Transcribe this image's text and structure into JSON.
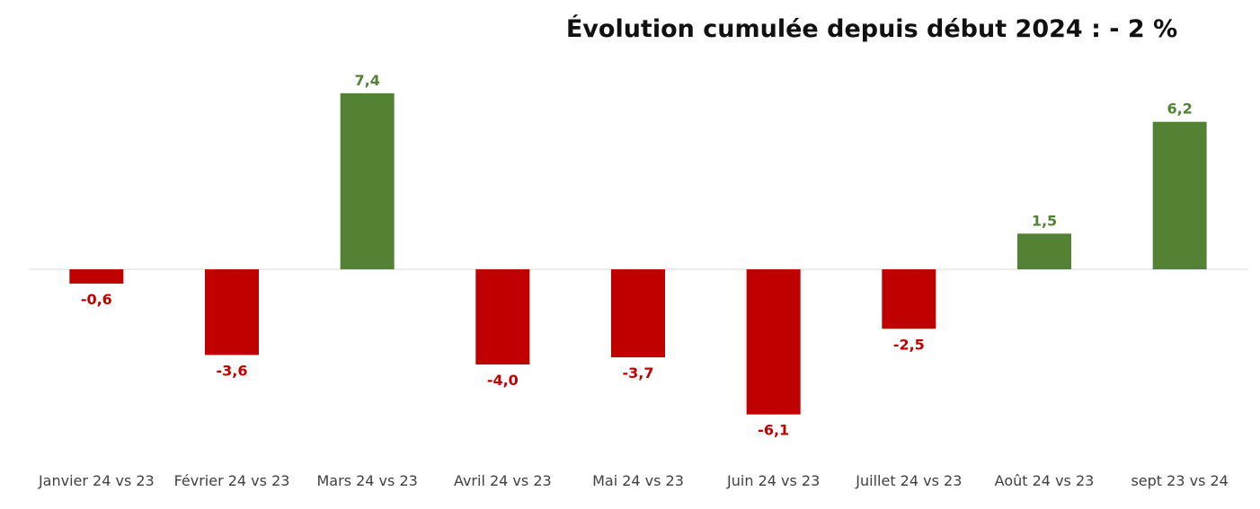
{
  "chart_data": {
    "type": "bar",
    "title": "Évolution cumulée depuis début 2024 : - 2 %",
    "xlabel": "",
    "ylabel": "",
    "categories": [
      "Janvier 24 vs 23",
      "Février 24 vs 23",
      "Mars 24 vs 23",
      "Avril 24 vs 23",
      "Mai 24 vs 23",
      "Juin 24 vs 23",
      "Juillet 24 vs 23",
      "Août 24 vs 23",
      "sept 23 vs 24"
    ],
    "values": [
      -0.6,
      -3.6,
      7.4,
      -4.0,
      -3.7,
      -6.1,
      -2.5,
      1.5,
      6.2
    ],
    "value_labels": [
      "-0,6",
      "-3,6",
      "7,4",
      "-4,0",
      "-3,7",
      "-6,1",
      "-2,5",
      "1,5",
      "6,2"
    ],
    "ylim": [
      -7,
      8
    ],
    "grid": false,
    "colors": {
      "positive": "#548235",
      "negative": "#C00000",
      "axis": "#D9D9D9"
    }
  }
}
